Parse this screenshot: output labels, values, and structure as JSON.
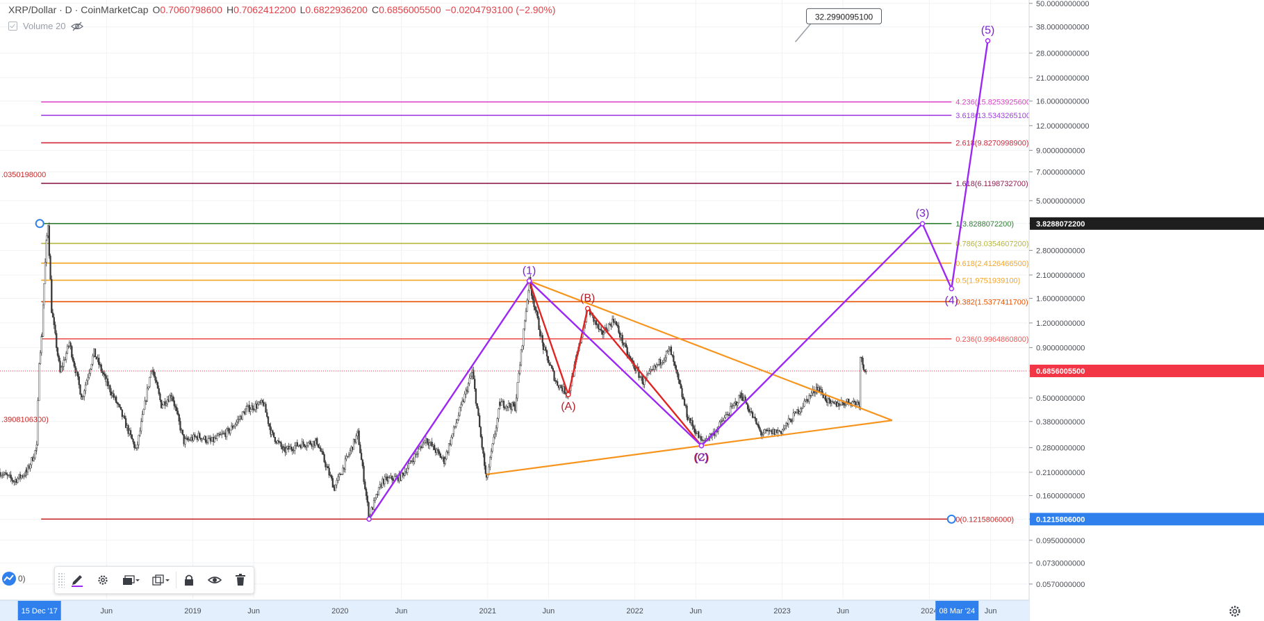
{
  "legend": {
    "symbol": "XRP/Dollar · D · CoinMarketCap",
    "open_label": "O",
    "open": "0.7060798600",
    "high_label": "H",
    "high": "0.7062412200",
    "low_label": "L",
    "low": "0.6822936200",
    "close_label": "C",
    "close": "0.6856005500",
    "change": "−0.0204793100 (−2.90%)",
    "volume_label": "Volume 20"
  },
  "bottom_left_widget_text": "0)",
  "colors": {
    "purple": "#9c27f5",
    "red": "#e02424",
    "orange": "#f7941d",
    "axis_bg": "#e3effd",
    "axis_highlight": "#2f80ed",
    "grid": "#f0f2f5",
    "up_candle": "#2c2c2c"
  },
  "icons": {
    "toolbar": [
      "pencil-icon",
      "gear-icon",
      "layers-icon",
      "clone-icon",
      "lock-icon",
      "eye-icon",
      "trash-icon"
    ],
    "legend": [
      "eye-crossed-icon"
    ],
    "axis": [
      "settings-gear-icon"
    ]
  },
  "chart_data": {
    "type": "candlestick",
    "scale": "log",
    "ylim": [
      0.048,
      52
    ],
    "x_range": [
      "2017-09-10",
      "2024-09-01"
    ],
    "x_tick_labels": [
      {
        "date": "2018-06-01",
        "label": "Jun"
      },
      {
        "date": "2019-01-01",
        "label": "2019"
      },
      {
        "date": "2019-06-01",
        "label": "Jun"
      },
      {
        "date": "2020-01-01",
        "label": "2020"
      },
      {
        "date": "2020-06-01",
        "label": "Jun"
      },
      {
        "date": "2021-01-01",
        "label": "2021"
      },
      {
        "date": "2021-06-01",
        "label": "Jun"
      },
      {
        "date": "2022-01-01",
        "label": "2022"
      },
      {
        "date": "2022-06-01",
        "label": "Jun"
      },
      {
        "date": "2023-01-01",
        "label": "2023"
      },
      {
        "date": "2023-06-01",
        "label": "Jun"
      },
      {
        "date": "2024-01-01",
        "label": "2024"
      },
      {
        "date": "2024-06-01",
        "label": "Jun"
      }
    ],
    "x_highlight_labels": [
      {
        "date": "2017-12-15",
        "label": "15 Dec '17"
      },
      {
        "date": "2024-03-08",
        "label": "08 Mar '24"
      }
    ],
    "y_tick_labels": [
      "50.0000000000",
      "38.0000000000",
      "28.0000000000",
      "21.0000000000",
      "16.0000000000",
      "12.0000000000",
      "9.0000000000",
      "7.0000000000",
      "5.0000000000",
      "3.8288072200",
      "2.8000000000",
      "2.1000000000",
      "1.6000000000",
      "1.2000000000",
      "0.9000000000",
      "0.6856005500",
      "0.5000000000",
      "0.3800000000",
      "0.2800000000",
      "0.2100000000",
      "0.1600000000",
      "0.1215806000",
      "0.0950000000",
      "0.0730000000",
      "0.0570000000"
    ],
    "y_highlight_labels": [
      {
        "value": 3.82880722,
        "label": "3.8288072200",
        "color": "#1e1e1e"
      },
      {
        "value": 0.68560055,
        "label": "0.6856005500",
        "color": "#f23645"
      },
      {
        "value": 0.1215806,
        "label": "0.1215806000",
        "color": "#2f80ed"
      }
    ],
    "last_price": 0.68560055,
    "fib_levels": [
      {
        "ratio": "4.236",
        "value": 15.82539256,
        "label": "4.236(15.8253925600)",
        "color": "#e040c8"
      },
      {
        "ratio": "3.618",
        "value": 13.53432651,
        "label": "3.618(13.5343265100)",
        "color": "#a040e0"
      },
      {
        "ratio": "2.618",
        "value": 9.82709989,
        "label": "2.618(9.8270998900)",
        "color": "#d0273a"
      },
      {
        "ratio": "1.618",
        "value": 6.11987327,
        "label": "1.618(6.1198732700)",
        "color": "#8e1f4e"
      },
      {
        "ratio": "1",
        "value": 3.82880722,
        "label": "1(3.8288072200)",
        "color": "#2e7d32"
      },
      {
        "ratio": "0.786",
        "value": 3.03546072,
        "label": "0.786(3.0354607200)",
        "color": "#b5b53a"
      },
      {
        "ratio": "0.618",
        "value": 2.41264665,
        "label": "0.618(2.4126466500)",
        "color": "#f5a623"
      },
      {
        "ratio": "0.5",
        "value": 1.97519391,
        "label": "0.5(1.9751939100)",
        "color": "#f5a623"
      },
      {
        "ratio": "0.382",
        "value": 1.53774117,
        "label": "0.382(1.5377411700)",
        "color": "#e65100"
      },
      {
        "ratio": "0.236",
        "value": 0.99648608,
        "label": "0.236(0.9964860800)",
        "color": "#ef5350"
      },
      {
        "ratio": "0",
        "value": 0.1215806,
        "label": "0(0.1215806000)",
        "color": "#c62828"
      }
    ],
    "fib_start_date": "2017-12-21",
    "fib_end_date": "2024-02-25",
    "left_cut_labels": [
      {
        "value": 6.8,
        "label": ".0350198000",
        "color": "#c62828"
      },
      {
        "value": 0.39081063,
        "label": ".3908106300)",
        "color": "#c62828"
      }
    ],
    "annotations": [
      {
        "label": "32.2990095100",
        "date": "2023-02-20",
        "value": 40
      }
    ],
    "purple_wave": [
      {
        "date": "2020-03-13",
        "value": 0.1215806,
        "label": ""
      },
      {
        "date": "2021-04-14",
        "value": 1.96,
        "label": "(1)"
      },
      {
        "date": "2022-06-15",
        "value": 0.2865,
        "label": "(2)"
      },
      {
        "date": "2023-12-15",
        "value": 3.82,
        "label": "(3)"
      },
      {
        "date": "2024-02-25",
        "value": 1.79,
        "label": "(4)"
      },
      {
        "date": "2024-05-25",
        "value": 32.3,
        "label": "(5)"
      }
    ],
    "red_wave": [
      {
        "date": "2021-04-14",
        "value": 1.96,
        "label": ""
      },
      {
        "date": "2021-07-20",
        "value": 0.52,
        "label": "(A)"
      },
      {
        "date": "2021-09-06",
        "value": 1.42,
        "label": "(B)"
      },
      {
        "date": "2022-06-15",
        "value": 0.2865,
        "label": "(C)"
      }
    ],
    "triangle_upper": [
      {
        "date": "2021-04-14",
        "value": 1.96
      },
      {
        "date": "2023-10-01",
        "value": 0.385
      }
    ],
    "triangle_lower": [
      {
        "date": "2020-12-29",
        "value": 0.205
      },
      {
        "date": "2023-10-01",
        "value": 0.385
      }
    ],
    "price_anchors": [
      {
        "date": "2017-09-10",
        "value": 0.21
      },
      {
        "date": "2017-10-15",
        "value": 0.19
      },
      {
        "date": "2017-11-15",
        "value": 0.21
      },
      {
        "date": "2017-12-10",
        "value": 0.28
      },
      {
        "date": "2017-12-16",
        "value": 0.78
      },
      {
        "date": "2017-12-23",
        "value": 1.05
      },
      {
        "date": "2017-12-28",
        "value": 1.9
      },
      {
        "date": "2018-01-04",
        "value": 3.3
      },
      {
        "date": "2018-01-07",
        "value": 3.8288
      },
      {
        "date": "2018-01-16",
        "value": 1.4
      },
      {
        "date": "2018-02-06",
        "value": 0.67
      },
      {
        "date": "2018-03-01",
        "value": 0.95
      },
      {
        "date": "2018-04-01",
        "value": 0.5
      },
      {
        "date": "2018-05-01",
        "value": 0.85
      },
      {
        "date": "2018-06-01",
        "value": 0.6
      },
      {
        "date": "2018-07-01",
        "value": 0.45
      },
      {
        "date": "2018-08-14",
        "value": 0.27
      },
      {
        "date": "2018-09-21",
        "value": 0.72
      },
      {
        "date": "2018-10-15",
        "value": 0.46
      },
      {
        "date": "2018-11-10",
        "value": 0.52
      },
      {
        "date": "2018-12-10",
        "value": 0.3
      },
      {
        "date": "2019-01-15",
        "value": 0.32
      },
      {
        "date": "2019-02-15",
        "value": 0.3
      },
      {
        "date": "2019-04-01",
        "value": 0.34
      },
      {
        "date": "2019-05-15",
        "value": 0.44
      },
      {
        "date": "2019-06-25",
        "value": 0.47
      },
      {
        "date": "2019-07-15",
        "value": 0.33
      },
      {
        "date": "2019-08-15",
        "value": 0.27
      },
      {
        "date": "2019-09-20",
        "value": 0.29
      },
      {
        "date": "2019-11-05",
        "value": 0.3
      },
      {
        "date": "2019-12-18",
        "value": 0.175
      },
      {
        "date": "2020-02-14",
        "value": 0.33
      },
      {
        "date": "2020-03-13",
        "value": 0.125
      },
      {
        "date": "2020-04-15",
        "value": 0.19
      },
      {
        "date": "2020-06-01",
        "value": 0.2
      },
      {
        "date": "2020-08-01",
        "value": 0.31
      },
      {
        "date": "2020-09-15",
        "value": 0.24
      },
      {
        "date": "2020-11-24",
        "value": 0.68
      },
      {
        "date": "2020-12-29",
        "value": 0.19
      },
      {
        "date": "2021-02-01",
        "value": 0.47
      },
      {
        "date": "2021-03-10",
        "value": 0.45
      },
      {
        "date": "2021-04-14",
        "value": 1.96
      },
      {
        "date": "2021-05-19",
        "value": 0.9
      },
      {
        "date": "2021-06-20",
        "value": 0.6
      },
      {
        "date": "2021-07-20",
        "value": 0.52
      },
      {
        "date": "2021-09-06",
        "value": 1.42
      },
      {
        "date": "2021-10-10",
        "value": 1.05
      },
      {
        "date": "2021-11-10",
        "value": 1.25
      },
      {
        "date": "2021-12-15",
        "value": 0.82
      },
      {
        "date": "2022-01-22",
        "value": 0.6
      },
      {
        "date": "2022-03-29",
        "value": 0.88
      },
      {
        "date": "2022-05-12",
        "value": 0.4
      },
      {
        "date": "2022-06-15",
        "value": 0.3
      },
      {
        "date": "2022-07-15",
        "value": 0.33
      },
      {
        "date": "2022-09-23",
        "value": 0.52
      },
      {
        "date": "2022-11-10",
        "value": 0.33
      },
      {
        "date": "2022-12-30",
        "value": 0.34
      },
      {
        "date": "2023-02-01",
        "value": 0.41
      },
      {
        "date": "2023-03-29",
        "value": 0.57
      },
      {
        "date": "2023-05-01",
        "value": 0.46
      },
      {
        "date": "2023-06-15",
        "value": 0.48
      },
      {
        "date": "2023-07-12",
        "value": 0.47
      },
      {
        "date": "2023-07-14",
        "value": 0.82
      },
      {
        "date": "2023-07-22",
        "value": 0.72
      },
      {
        "date": "2023-07-31",
        "value": 0.6856
      }
    ]
  }
}
